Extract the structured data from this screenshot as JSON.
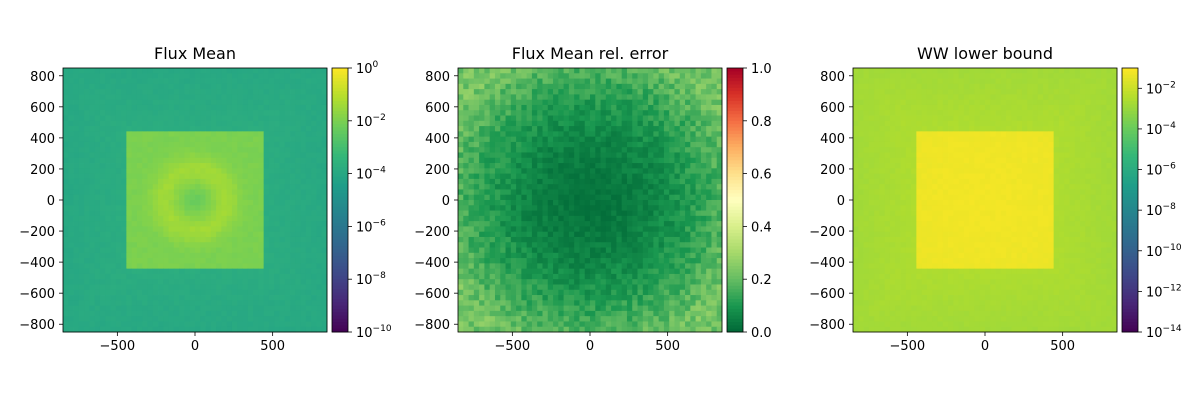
{
  "chart_data": [
    {
      "type": "heatmap",
      "title": "Flux Mean",
      "x_ticks": [
        "−500",
        "0",
        "500"
      ],
      "x_tick_values": [
        -500,
        0,
        500
      ],
      "y_ticks": [
        "800",
        "600",
        "400",
        "200",
        "0",
        "−200",
        "−400",
        "−600",
        "−800"
      ],
      "y_tick_values": [
        800,
        600,
        400,
        200,
        0,
        -200,
        -400,
        -600,
        -800
      ],
      "xlim": [
        -850,
        850
      ],
      "ylim": [
        -850,
        850
      ],
      "colorbar": {
        "scale": "log",
        "colormap": "viridis",
        "range": [
          1e-10,
          1
        ],
        "ticks": [
          {
            "base": "10",
            "exp": "0"
          },
          {
            "base": "10",
            "exp": "−2"
          },
          {
            "base": "10",
            "exp": "−4"
          },
          {
            "base": "10",
            "exp": "−6"
          },
          {
            "base": "10",
            "exp": "−8"
          },
          {
            "base": "10",
            "exp": "−10"
          }
        ],
        "tick_values": [
          0,
          -2,
          -4,
          -6,
          -8,
          -10
        ]
      },
      "pattern": {
        "background": 0.62,
        "inner_square_half_width": 440,
        "inner_level": 0.8,
        "center_ring_level": 0.88,
        "center_ring_radius": 200,
        "noise": 0.015
      }
    },
    {
      "type": "heatmap",
      "title": "Flux Mean rel. error",
      "x_ticks": [
        "−500",
        "0",
        "500"
      ],
      "x_tick_values": [
        -500,
        0,
        500
      ],
      "y_ticks": [
        "800",
        "600",
        "400",
        "200",
        "0",
        "−200",
        "−400",
        "−600",
        "−800"
      ],
      "y_tick_values": [
        800,
        600,
        400,
        200,
        0,
        -200,
        -400,
        -600,
        -800
      ],
      "xlim": [
        -850,
        850
      ],
      "ylim": [
        -850,
        850
      ],
      "colorbar": {
        "scale": "linear",
        "colormap": "RdYlGn_r",
        "range": [
          0,
          1
        ],
        "ticks": [
          {
            "base": "1.0",
            "exp": ""
          },
          {
            "base": "0.8",
            "exp": ""
          },
          {
            "base": "0.6",
            "exp": ""
          },
          {
            "base": "0.4",
            "exp": ""
          },
          {
            "base": "0.2",
            "exp": ""
          },
          {
            "base": "0.0",
            "exp": ""
          }
        ],
        "tick_values": [
          1.0,
          0.8,
          0.6,
          0.4,
          0.2,
          0.0
        ]
      },
      "pattern": {
        "center_error": 0.02,
        "edge_error": 0.2,
        "noise": 0.08
      }
    },
    {
      "type": "heatmap",
      "title": "WW lower bound",
      "x_ticks": [
        "−500",
        "0",
        "500"
      ],
      "x_tick_values": [
        -500,
        0,
        500
      ],
      "y_ticks": [
        "800",
        "600",
        "400",
        "200",
        "0",
        "−200",
        "−400",
        "−600",
        "−800"
      ],
      "y_tick_values": [
        800,
        600,
        400,
        200,
        0,
        -200,
        -400,
        -600,
        -800
      ],
      "xlim": [
        -850,
        850
      ],
      "ylim": [
        -850,
        850
      ],
      "colorbar": {
        "scale": "log",
        "colormap": "viridis",
        "range": [
          1e-14,
          0.1
        ],
        "ticks": [
          {
            "base": "10",
            "exp": "−2"
          },
          {
            "base": "10",
            "exp": "−4"
          },
          {
            "base": "10",
            "exp": "−6"
          },
          {
            "base": "10",
            "exp": "−8"
          },
          {
            "base": "10",
            "exp": "−10"
          },
          {
            "base": "10",
            "exp": "−12"
          },
          {
            "base": "10",
            "exp": "−14"
          }
        ],
        "tick_values": [
          -2,
          -4,
          -6,
          -8,
          -10,
          -12,
          -14
        ]
      },
      "pattern": {
        "background": 0.88,
        "inner_square_half_width": 440,
        "inner_level": 0.985,
        "noise": 0.01
      }
    }
  ]
}
